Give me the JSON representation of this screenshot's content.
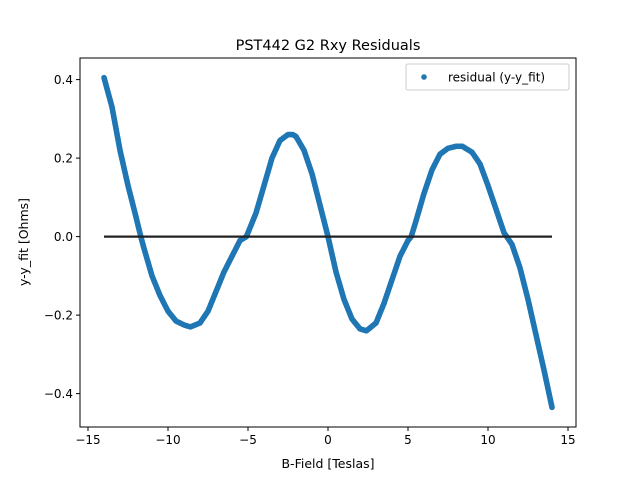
{
  "chart_data": {
    "type": "scatter",
    "title": "PST442 G2 Rxy Residuals",
    "xlabel": "B-Field [Teslas]",
    "ylabel": "y-y_fit [Ohms]",
    "xlim": [
      -15.5,
      15.5
    ],
    "ylim": [
      -0.485,
      0.455
    ],
    "xticks": [
      -15,
      -10,
      -5,
      0,
      5,
      10,
      15
    ],
    "xtick_labels": [
      "−15",
      "−10",
      "−5",
      "0",
      "5",
      "10",
      "15"
    ],
    "yticks": [
      -0.4,
      -0.2,
      0.0,
      0.2,
      0.4
    ],
    "ytick_labels": [
      "−0.4",
      "−0.2",
      "0.0",
      "0.2",
      "0.4"
    ],
    "grid": false,
    "legend": {
      "position": "top-right",
      "entries": [
        "residual (y-y_fit)"
      ]
    },
    "colors": {
      "series": "#1f77b4",
      "reference_line": "#222222"
    },
    "series": [
      {
        "name": "residual (y-y_fit)",
        "kind": "scatter",
        "x": [
          -14.0,
          -13.5,
          -13.0,
          -12.5,
          -12.0,
          -11.7,
          -11.5,
          -11.0,
          -10.5,
          -10.0,
          -9.5,
          -9.0,
          -8.6,
          -8.0,
          -7.5,
          -7.0,
          -6.5,
          -6.0,
          -5.5,
          -5.1,
          -4.5,
          -4.0,
          -3.5,
          -3.0,
          -2.5,
          -2.2,
          -2.0,
          -1.5,
          -1.0,
          -0.5,
          0.0,
          0.5,
          1.0,
          1.5,
          2.0,
          2.4,
          3.0,
          3.5,
          4.0,
          4.5,
          5.0,
          5.2,
          5.5,
          6.0,
          6.5,
          7.0,
          7.5,
          8.0,
          8.4,
          9.0,
          9.5,
          10.0,
          10.5,
          11.0,
          11.5,
          12.0,
          12.5,
          13.0,
          13.5,
          14.0
        ],
        "y": [
          0.405,
          0.33,
          0.22,
          0.13,
          0.05,
          0.0,
          -0.03,
          -0.1,
          -0.15,
          -0.19,
          -0.215,
          -0.225,
          -0.23,
          -0.22,
          -0.19,
          -0.14,
          -0.09,
          -0.05,
          -0.01,
          0.0,
          0.06,
          0.13,
          0.2,
          0.245,
          0.26,
          0.26,
          0.255,
          0.22,
          0.16,
          0.08,
          0.0,
          -0.09,
          -0.16,
          -0.21,
          -0.235,
          -0.24,
          -0.22,
          -0.17,
          -0.11,
          -0.05,
          -0.01,
          0.0,
          0.04,
          0.11,
          0.17,
          0.21,
          0.225,
          0.23,
          0.23,
          0.215,
          0.185,
          0.13,
          0.07,
          0.01,
          -0.02,
          -0.08,
          -0.16,
          -0.25,
          -0.34,
          -0.435
        ]
      },
      {
        "kind": "line",
        "x": [
          -14.0,
          14.0
        ],
        "y": [
          0.0,
          0.0
        ]
      }
    ]
  }
}
